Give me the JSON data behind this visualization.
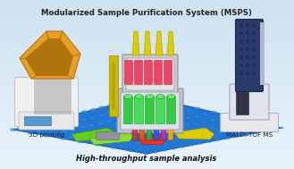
{
  "title": "Modularized Sample Purification System (MSPS)",
  "subtitle": "High-throughput sample analysis",
  "label_left": "3D printing",
  "label_right": "MALDI-TOF MS",
  "bg_top": "#cfe2f0",
  "bg_bottom": "#daeef8",
  "title_fontsize": 6.2,
  "subtitle_fontsize": 6.0,
  "label_fontsize": 5.2,
  "fig_width": 3.29,
  "fig_height": 1.89,
  "dpi": 100
}
